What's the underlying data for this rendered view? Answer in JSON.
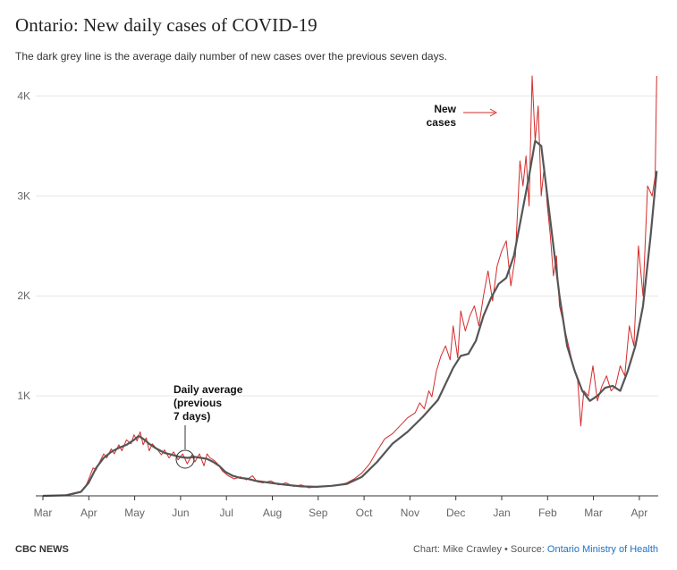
{
  "title": "Ontario: New daily cases of COVID-19",
  "subtitle": "The dark grey line is the average daily number of new cases over the previous seven days.",
  "footer": {
    "brand": "CBC NEWS",
    "credit": "Chart: Mike Crawley • Source: ",
    "source": "Ontario Ministry of Health"
  },
  "annotations": {
    "new_cases": [
      "New",
      "cases"
    ],
    "daily_average": [
      "Daily average",
      "(previous",
      "7 days)"
    ]
  },
  "colors": {
    "new_cases": "#d42b2b",
    "average": "#555555",
    "grid": "#e6e6e6",
    "axis": "#333333"
  },
  "chart_data": {
    "type": "line",
    "xlabel": "",
    "ylabel": "",
    "ylim": [
      0,
      4200
    ],
    "y_ticks": [
      {
        "value": 1000,
        "label": "1K"
      },
      {
        "value": 2000,
        "label": "2K"
      },
      {
        "value": 3000,
        "label": "3K"
      },
      {
        "value": 4000,
        "label": "4K"
      }
    ],
    "x_ticks": [
      "Mar",
      "Apr",
      "May",
      "Jun",
      "Jul",
      "Aug",
      "Sep",
      "Oct",
      "Nov",
      "Dec",
      "Jan",
      "Feb",
      "Mar",
      "Apr"
    ],
    "x_day_range": [
      0,
      405
    ],
    "series": [
      {
        "key": "new_cases",
        "points": [
          [
            0,
            0
          ],
          [
            10,
            2
          ],
          [
            20,
            15
          ],
          [
            25,
            40
          ],
          [
            28,
            90
          ],
          [
            31,
            200
          ],
          [
            33,
            280
          ],
          [
            35,
            260
          ],
          [
            37,
            330
          ],
          [
            40,
            420
          ],
          [
            42,
            380
          ],
          [
            45,
            470
          ],
          [
            47,
            420
          ],
          [
            50,
            510
          ],
          [
            52,
            450
          ],
          [
            55,
            560
          ],
          [
            58,
            520
          ],
          [
            60,
            610
          ],
          [
            62,
            550
          ],
          [
            64,
            640
          ],
          [
            66,
            510
          ],
          [
            68,
            580
          ],
          [
            70,
            450
          ],
          [
            72,
            520
          ],
          [
            75,
            470
          ],
          [
            78,
            410
          ],
          [
            80,
            460
          ],
          [
            83,
            380
          ],
          [
            86,
            440
          ],
          [
            89,
            360
          ],
          [
            92,
            420
          ],
          [
            95,
            320
          ],
          [
            98,
            410
          ],
          [
            100,
            340
          ],
          [
            103,
            420
          ],
          [
            106,
            300
          ],
          [
            108,
            420
          ],
          [
            110,
            380
          ],
          [
            113,
            350
          ],
          [
            115,
            320
          ],
          [
            118,
            250
          ],
          [
            122,
            200
          ],
          [
            126,
            170
          ],
          [
            130,
            190
          ],
          [
            134,
            160
          ],
          [
            138,
            200
          ],
          [
            141,
            140
          ],
          [
            145,
            130
          ],
          [
            150,
            150
          ],
          [
            155,
            110
          ],
          [
            160,
            130
          ],
          [
            165,
            95
          ],
          [
            170,
            110
          ],
          [
            175,
            80
          ],
          [
            180,
            90
          ],
          [
            185,
            95
          ],
          [
            190,
            100
          ],
          [
            195,
            110
          ],
          [
            200,
            130
          ],
          [
            205,
            170
          ],
          [
            210,
            230
          ],
          [
            215,
            320
          ],
          [
            220,
            450
          ],
          [
            225,
            570
          ],
          [
            230,
            620
          ],
          [
            235,
            700
          ],
          [
            240,
            780
          ],
          [
            245,
            830
          ],
          [
            248,
            930
          ],
          [
            251,
            870
          ],
          [
            254,
            1050
          ],
          [
            256,
            990
          ],
          [
            259,
            1250
          ],
          [
            262,
            1400
          ],
          [
            265,
            1500
          ],
          [
            268,
            1360
          ],
          [
            270,
            1700
          ],
          [
            273,
            1380
          ],
          [
            275,
            1850
          ],
          [
            278,
            1650
          ],
          [
            281,
            1800
          ],
          [
            284,
            1900
          ],
          [
            287,
            1700
          ],
          [
            290,
            2000
          ],
          [
            293,
            2250
          ],
          [
            296,
            1950
          ],
          [
            299,
            2300
          ],
          [
            302,
            2450
          ],
          [
            305,
            2550
          ],
          [
            308,
            2100
          ],
          [
            311,
            2400
          ],
          [
            314,
            3350
          ],
          [
            316,
            3100
          ],
          [
            318,
            3400
          ],
          [
            320,
            2900
          ],
          [
            322,
            4200
          ],
          [
            324,
            3550
          ],
          [
            326,
            3900
          ],
          [
            328,
            3000
          ],
          [
            330,
            3300
          ],
          [
            332,
            2900
          ],
          [
            334,
            2600
          ],
          [
            336,
            2200
          ],
          [
            338,
            2400
          ],
          [
            340,
            1900
          ],
          [
            343,
            1700
          ],
          [
            346,
            1500
          ],
          [
            349,
            1300
          ],
          [
            352,
            1150
          ],
          [
            354,
            700
          ],
          [
            356,
            1050
          ],
          [
            359,
            1000
          ],
          [
            362,
            1300
          ],
          [
            365,
            950
          ],
          [
            368,
            1100
          ],
          [
            371,
            1200
          ],
          [
            374,
            1050
          ],
          [
            377,
            1100
          ],
          [
            380,
            1300
          ],
          [
            383,
            1200
          ],
          [
            386,
            1700
          ],
          [
            389,
            1500
          ],
          [
            392,
            2500
          ],
          [
            395,
            2000
          ],
          [
            398,
            3100
          ],
          [
            401,
            3000
          ],
          [
            403,
            3200
          ],
          [
            404,
            4200
          ]
        ]
      },
      {
        "key": "average",
        "points": [
          [
            0,
            0
          ],
          [
            15,
            5
          ],
          [
            25,
            40
          ],
          [
            30,
            130
          ],
          [
            35,
            280
          ],
          [
            40,
            380
          ],
          [
            45,
            440
          ],
          [
            50,
            480
          ],
          [
            55,
            510
          ],
          [
            60,
            560
          ],
          [
            63,
            600
          ],
          [
            66,
            570
          ],
          [
            70,
            520
          ],
          [
            75,
            470
          ],
          [
            80,
            430
          ],
          [
            85,
            410
          ],
          [
            90,
            390
          ],
          [
            95,
            380
          ],
          [
            100,
            390
          ],
          [
            104,
            380
          ],
          [
            108,
            370
          ],
          [
            112,
            340
          ],
          [
            116,
            300
          ],
          [
            120,
            240
          ],
          [
            125,
            200
          ],
          [
            130,
            180
          ],
          [
            135,
            170
          ],
          [
            140,
            150
          ],
          [
            145,
            140
          ],
          [
            150,
            130
          ],
          [
            160,
            110
          ],
          [
            170,
            95
          ],
          [
            180,
            90
          ],
          [
            190,
            100
          ],
          [
            200,
            120
          ],
          [
            210,
            190
          ],
          [
            220,
            340
          ],
          [
            230,
            520
          ],
          [
            240,
            640
          ],
          [
            250,
            790
          ],
          [
            260,
            960
          ],
          [
            270,
            1280
          ],
          [
            275,
            1400
          ],
          [
            280,
            1420
          ],
          [
            285,
            1550
          ],
          [
            290,
            1800
          ],
          [
            295,
            1980
          ],
          [
            300,
            2120
          ],
          [
            305,
            2180
          ],
          [
            310,
            2400
          ],
          [
            315,
            2800
          ],
          [
            320,
            3200
          ],
          [
            324,
            3550
          ],
          [
            328,
            3500
          ],
          [
            332,
            3000
          ],
          [
            336,
            2500
          ],
          [
            340,
            2000
          ],
          [
            345,
            1500
          ],
          [
            350,
            1250
          ],
          [
            355,
            1050
          ],
          [
            360,
            950
          ],
          [
            365,
            1000
          ],
          [
            370,
            1080
          ],
          [
            375,
            1100
          ],
          [
            380,
            1050
          ],
          [
            385,
            1250
          ],
          [
            390,
            1500
          ],
          [
            395,
            1900
          ],
          [
            400,
            2600
          ],
          [
            404,
            3250
          ]
        ]
      }
    ]
  }
}
